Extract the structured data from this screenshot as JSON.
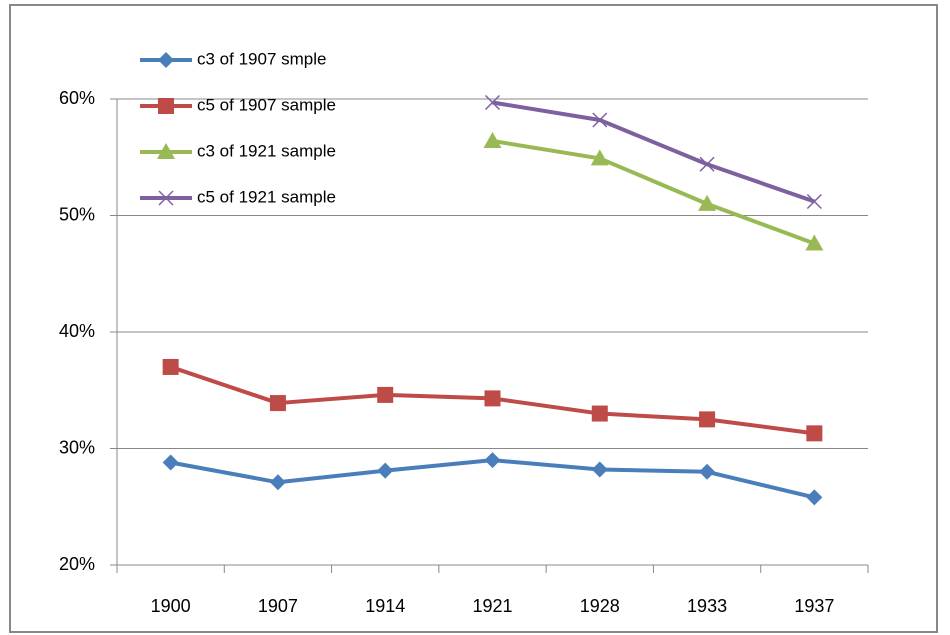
{
  "chart_data": {
    "type": "line",
    "categories": [
      "1900",
      "1907",
      "1914",
      "1921",
      "1928",
      "1933",
      "1937"
    ],
    "series": [
      {
        "name": "c3 of 1907 smple",
        "color": "#4a7ebb",
        "marker": "diamond",
        "values": [
          28.8,
          27.1,
          28.1,
          29.0,
          28.2,
          28.0,
          25.8
        ]
      },
      {
        "name": "c5 of 1907 sample",
        "color": "#be4b48",
        "marker": "square",
        "values": [
          37.0,
          33.9,
          34.6,
          34.3,
          33.0,
          32.5,
          31.3
        ]
      },
      {
        "name": "c3 of 1921 sample",
        "color": "#98b954",
        "marker": "triangle",
        "values": [
          null,
          null,
          null,
          56.4,
          54.9,
          51.0,
          47.6
        ]
      },
      {
        "name": "c5 of 1921 sample",
        "color": "#7d60a0",
        "marker": "x",
        "values": [
          null,
          null,
          null,
          59.7,
          58.2,
          54.4,
          51.2
        ]
      }
    ],
    "ylim": [
      20,
      60
    ],
    "yticks": [
      {
        "value": 20,
        "label": "20%"
      },
      {
        "value": 30,
        "label": "30%"
      },
      {
        "value": 40,
        "label": "40%"
      },
      {
        "value": 50,
        "label": "50%"
      },
      {
        "value": 60,
        "label": "60%"
      }
    ],
    "grid": true,
    "legend": "top-left"
  }
}
